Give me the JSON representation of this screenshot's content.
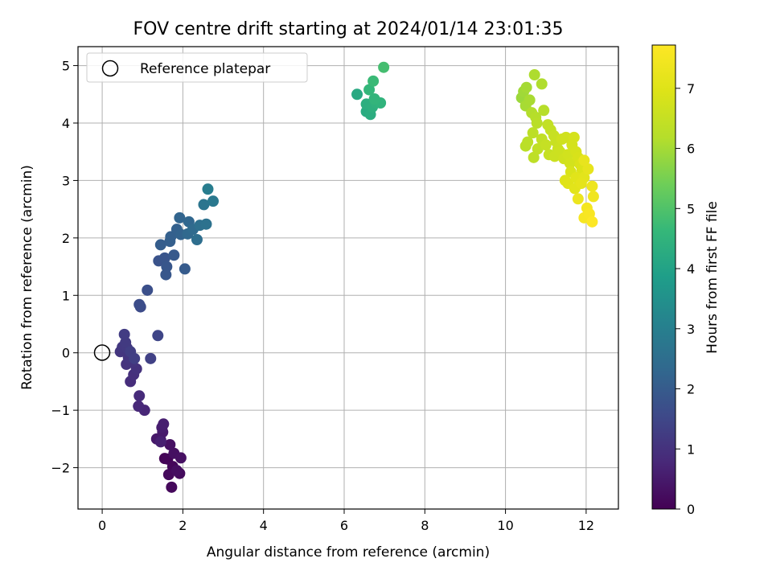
{
  "chart_data": {
    "type": "scatter",
    "title": "FOV centre drift starting at 2024/01/14 23:01:35",
    "xlabel": "Angular distance from reference (arcmin)",
    "ylabel": "Rotation from reference (arcmin)",
    "xlim": [
      -0.6,
      12.8
    ],
    "ylim": [
      -2.72,
      5.33
    ],
    "xticks": [
      0,
      2,
      4,
      6,
      8,
      10,
      12
    ],
    "yticks": [
      -2,
      -1,
      0,
      1,
      2,
      3,
      4,
      5
    ],
    "grid": true,
    "legend": {
      "placement": "top-left",
      "entries": [
        "Reference platepar"
      ]
    },
    "reference_point": {
      "x": 0,
      "y": 0,
      "label": "Reference platepar"
    },
    "colorbar": {
      "label": "Hours from first FF file",
      "range": [
        0,
        7.72
      ],
      "ticks": [
        0,
        1,
        2,
        3,
        4,
        5,
        6,
        7
      ],
      "colormap": "viridis"
    },
    "points": [
      {
        "x": 1.55,
        "y": -1.84,
        "h": 0.05
      },
      {
        "x": 1.62,
        "y": -1.85,
        "h": 0.08
      },
      {
        "x": 1.75,
        "y": -1.98,
        "h": 0.12
      },
      {
        "x": 1.72,
        "y": -2.34,
        "h": 0.15
      },
      {
        "x": 1.65,
        "y": -2.12,
        "h": 0.18
      },
      {
        "x": 1.92,
        "y": -2.1,
        "h": 0.2
      },
      {
        "x": 1.85,
        "y": -2.05,
        "h": 0.25
      },
      {
        "x": 1.78,
        "y": -1.75,
        "h": 0.28
      },
      {
        "x": 1.95,
        "y": -1.83,
        "h": 0.3
      },
      {
        "x": 1.68,
        "y": -1.6,
        "h": 0.32
      },
      {
        "x": 1.45,
        "y": -1.52,
        "h": 0.4
      },
      {
        "x": 1.35,
        "y": -1.5,
        "h": 0.45
      },
      {
        "x": 1.5,
        "y": -1.38,
        "h": 0.5
      },
      {
        "x": 1.48,
        "y": -1.3,
        "h": 0.55
      },
      {
        "x": 1.52,
        "y": -1.24,
        "h": 0.6
      },
      {
        "x": 1.45,
        "y": -1.55,
        "h": 0.62
      },
      {
        "x": 1.05,
        "y": -1.0,
        "h": 0.75
      },
      {
        "x": 0.9,
        "y": -0.93,
        "h": 0.8
      },
      {
        "x": 0.92,
        "y": -0.75,
        "h": 0.85
      },
      {
        "x": 0.7,
        "y": -0.5,
        "h": 0.9
      },
      {
        "x": 0.78,
        "y": -0.38,
        "h": 0.95
      },
      {
        "x": 0.85,
        "y": -0.28,
        "h": 1.0
      },
      {
        "x": 0.6,
        "y": -0.2,
        "h": 1.02
      },
      {
        "x": 0.75,
        "y": -0.16,
        "h": 1.05
      },
      {
        "x": 0.65,
        "y": -0.08,
        "h": 1.08
      },
      {
        "x": 0.45,
        "y": 0.02,
        "h": 1.1
      },
      {
        "x": 0.5,
        "y": 0.1,
        "h": 1.15
      },
      {
        "x": 0.62,
        "y": 0.08,
        "h": 1.18
      },
      {
        "x": 0.58,
        "y": 0.18,
        "h": 1.2
      },
      {
        "x": 0.55,
        "y": 0.32,
        "h": 1.25
      },
      {
        "x": 0.7,
        "y": 0.02,
        "h": 1.28
      },
      {
        "x": 0.8,
        "y": -0.1,
        "h": 1.3
      },
      {
        "x": 1.2,
        "y": -0.1,
        "h": 1.35
      },
      {
        "x": 1.38,
        "y": 0.3,
        "h": 1.45
      },
      {
        "x": 0.95,
        "y": 0.8,
        "h": 1.6
      },
      {
        "x": 0.92,
        "y": 0.84,
        "h": 1.65
      },
      {
        "x": 1.12,
        "y": 1.09,
        "h": 1.7
      },
      {
        "x": 1.4,
        "y": 1.6,
        "h": 1.8
      },
      {
        "x": 1.55,
        "y": 1.65,
        "h": 1.85
      },
      {
        "x": 1.6,
        "y": 1.5,
        "h": 1.88
      },
      {
        "x": 1.58,
        "y": 1.36,
        "h": 1.9
      },
      {
        "x": 1.78,
        "y": 1.7,
        "h": 1.95
      },
      {
        "x": 2.05,
        "y": 1.46,
        "h": 2.0
      },
      {
        "x": 1.45,
        "y": 1.88,
        "h": 2.05
      },
      {
        "x": 1.68,
        "y": 1.94,
        "h": 2.1
      },
      {
        "x": 1.7,
        "y": 2.02,
        "h": 2.12
      },
      {
        "x": 1.85,
        "y": 2.15,
        "h": 2.15
      },
      {
        "x": 1.95,
        "y": 2.06,
        "h": 2.2
      },
      {
        "x": 1.92,
        "y": 2.35,
        "h": 2.25
      },
      {
        "x": 2.15,
        "y": 2.28,
        "h": 2.3
      },
      {
        "x": 2.12,
        "y": 2.07,
        "h": 2.35
      },
      {
        "x": 2.25,
        "y": 2.15,
        "h": 2.4
      },
      {
        "x": 2.35,
        "y": 1.97,
        "h": 2.5
      },
      {
        "x": 2.42,
        "y": 2.22,
        "h": 2.55
      },
      {
        "x": 2.58,
        "y": 2.24,
        "h": 2.6
      },
      {
        "x": 2.52,
        "y": 2.58,
        "h": 2.7
      },
      {
        "x": 2.75,
        "y": 2.64,
        "h": 2.8
      },
      {
        "x": 2.62,
        "y": 2.85,
        "h": 2.95
      },
      {
        "x": 6.32,
        "y": 4.5,
        "h": 4.2
      },
      {
        "x": 6.55,
        "y": 4.2,
        "h": 4.25
      },
      {
        "x": 6.65,
        "y": 4.15,
        "h": 4.3
      },
      {
        "x": 6.55,
        "y": 4.33,
        "h": 4.35
      },
      {
        "x": 6.7,
        "y": 4.28,
        "h": 4.4
      },
      {
        "x": 6.78,
        "y": 4.36,
        "h": 4.45
      },
      {
        "x": 6.9,
        "y": 4.35,
        "h": 4.5
      },
      {
        "x": 6.75,
        "y": 4.42,
        "h": 4.55
      },
      {
        "x": 6.62,
        "y": 4.58,
        "h": 4.6
      },
      {
        "x": 6.72,
        "y": 4.73,
        "h": 4.7
      },
      {
        "x": 6.98,
        "y": 4.97,
        "h": 4.85
      },
      {
        "x": 10.4,
        "y": 4.44,
        "h": 5.9
      },
      {
        "x": 10.45,
        "y": 4.55,
        "h": 5.95
      },
      {
        "x": 10.52,
        "y": 4.62,
        "h": 6.0
      },
      {
        "x": 10.5,
        "y": 4.3,
        "h": 6.02
      },
      {
        "x": 10.6,
        "y": 4.4,
        "h": 6.05
      },
      {
        "x": 10.72,
        "y": 4.84,
        "h": 6.1
      },
      {
        "x": 10.9,
        "y": 4.68,
        "h": 6.12
      },
      {
        "x": 10.65,
        "y": 4.18,
        "h": 6.15
      },
      {
        "x": 10.75,
        "y": 4.1,
        "h": 6.2
      },
      {
        "x": 10.95,
        "y": 4.22,
        "h": 6.22
      },
      {
        "x": 10.78,
        "y": 4.0,
        "h": 6.25
      },
      {
        "x": 10.5,
        "y": 3.6,
        "h": 6.28
      },
      {
        "x": 10.55,
        "y": 3.67,
        "h": 6.3
      },
      {
        "x": 10.68,
        "y": 3.83,
        "h": 6.32
      },
      {
        "x": 10.7,
        "y": 3.4,
        "h": 6.35
      },
      {
        "x": 10.8,
        "y": 3.55,
        "h": 6.38
      },
      {
        "x": 10.9,
        "y": 3.72,
        "h": 6.4
      },
      {
        "x": 11.05,
        "y": 3.97,
        "h": 6.42
      },
      {
        "x": 11.12,
        "y": 3.88,
        "h": 6.45
      },
      {
        "x": 11.0,
        "y": 3.62,
        "h": 6.48
      },
      {
        "x": 11.08,
        "y": 3.45,
        "h": 6.5
      },
      {
        "x": 11.2,
        "y": 3.78,
        "h": 6.52
      },
      {
        "x": 11.25,
        "y": 3.68,
        "h": 6.55
      },
      {
        "x": 11.3,
        "y": 3.55,
        "h": 6.58
      },
      {
        "x": 11.22,
        "y": 3.42,
        "h": 6.6
      },
      {
        "x": 11.35,
        "y": 3.5,
        "h": 6.62
      },
      {
        "x": 11.4,
        "y": 3.72,
        "h": 6.65
      },
      {
        "x": 11.45,
        "y": 3.38,
        "h": 6.68
      },
      {
        "x": 11.5,
        "y": 3.75,
        "h": 6.7
      },
      {
        "x": 11.55,
        "y": 3.45,
        "h": 6.72
      },
      {
        "x": 11.6,
        "y": 3.3,
        "h": 6.75
      },
      {
        "x": 11.65,
        "y": 3.62,
        "h": 6.78
      },
      {
        "x": 11.7,
        "y": 3.75,
        "h": 6.8
      },
      {
        "x": 11.75,
        "y": 3.5,
        "h": 6.82
      },
      {
        "x": 11.8,
        "y": 3.4,
        "h": 6.85
      },
      {
        "x": 11.62,
        "y": 3.15,
        "h": 6.88
      },
      {
        "x": 11.85,
        "y": 3.28,
        "h": 6.9
      },
      {
        "x": 11.9,
        "y": 3.18,
        "h": 6.95
      },
      {
        "x": 11.48,
        "y": 3.0,
        "h": 7.0
      },
      {
        "x": 11.55,
        "y": 2.95,
        "h": 7.02
      },
      {
        "x": 11.75,
        "y": 3.05,
        "h": 7.05
      },
      {
        "x": 11.72,
        "y": 2.86,
        "h": 7.08
      },
      {
        "x": 11.95,
        "y": 3.05,
        "h": 7.1
      },
      {
        "x": 11.88,
        "y": 2.95,
        "h": 7.15
      },
      {
        "x": 12.05,
        "y": 3.2,
        "h": 7.2
      },
      {
        "x": 11.95,
        "y": 3.35,
        "h": 7.22
      },
      {
        "x": 11.8,
        "y": 2.68,
        "h": 7.3
      },
      {
        "x": 12.15,
        "y": 2.9,
        "h": 7.35
      },
      {
        "x": 12.18,
        "y": 2.72,
        "h": 7.4
      },
      {
        "x": 12.02,
        "y": 2.52,
        "h": 7.5
      },
      {
        "x": 11.95,
        "y": 2.35,
        "h": 7.55
      },
      {
        "x": 12.08,
        "y": 2.42,
        "h": 7.6
      },
      {
        "x": 12.15,
        "y": 2.28,
        "h": 7.7
      }
    ]
  }
}
